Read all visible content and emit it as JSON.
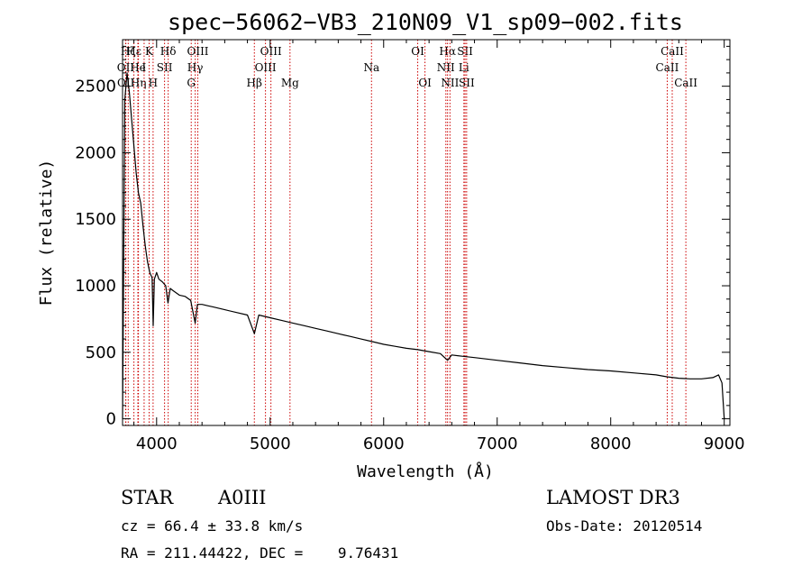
{
  "chart_data": {
    "type": "line",
    "title": "spec−56062−VB3_210N09_V1_sp09−002.fits",
    "xlabel": "Wavelength (Å)",
    "ylabel": "Flux (relative)",
    "xlim": [
      3700,
      9050
    ],
    "ylim": [
      -50,
      2850
    ],
    "xticks": [
      4000,
      5000,
      6000,
      7000,
      8000,
      9000
    ],
    "yticks": [
      0,
      500,
      1000,
      1500,
      2000,
      2500
    ],
    "series": [
      {
        "name": "flux",
        "x": [
          3700,
          3720,
          3740,
          3760,
          3780,
          3800,
          3820,
          3840,
          3860,
          3880,
          3900,
          3920,
          3940,
          3960,
          3970,
          3980,
          4000,
          4020,
          4050,
          4080,
          4100,
          4120,
          4150,
          4200,
          4250,
          4300,
          4340,
          4360,
          4400,
          4450,
          4500,
          4600,
          4700,
          4800,
          4861,
          4900,
          5000,
          5100,
          5200,
          5300,
          5400,
          5500,
          5600,
          5700,
          5800,
          5900,
          6000,
          6100,
          6200,
          6300,
          6400,
          6500,
          6563,
          6600,
          6700,
          6800,
          6900,
          7000,
          7200,
          7400,
          7600,
          7800,
          8000,
          8200,
          8400,
          8500,
          8600,
          8700,
          8800,
          8900,
          8950,
          8980,
          9000
        ],
        "y": [
          0,
          2400,
          2600,
          2450,
          2250,
          2050,
          1850,
          1700,
          1620,
          1450,
          1300,
          1180,
          1100,
          1060,
          700,
          1050,
          1100,
          1050,
          1030,
          1000,
          870,
          980,
          960,
          930,
          920,
          890,
          720,
          860,
          860,
          850,
          840,
          820,
          800,
          780,
          640,
          780,
          760,
          740,
          720,
          700,
          680,
          660,
          640,
          620,
          600,
          580,
          560,
          545,
          530,
          520,
          505,
          490,
          440,
          480,
          470,
          460,
          450,
          440,
          420,
          400,
          385,
          370,
          360,
          345,
          330,
          315,
          305,
          300,
          300,
          310,
          330,
          270,
          0
        ]
      }
    ],
    "lines": [
      {
        "name": "Hζ",
        "x": 3750,
        "row": 0
      },
      {
        "name": "OII",
        "x": 3727,
        "row": 1
      },
      {
        "name": "OII",
        "x": 3729,
        "row": 2
      },
      {
        "name": "Hε",
        "x": 3800,
        "row": 0
      },
      {
        "name": "He",
        "x": 3835,
        "row": 1
      },
      {
        "name": "Hη",
        "x": 3840,
        "row": 2
      },
      {
        "name": "K",
        "x": 3934,
        "row": 0
      },
      {
        "name": "I",
        "x": 3890,
        "row": 1
      },
      {
        "name": "H",
        "x": 3969,
        "row": 2
      },
      {
        "name": "Hδ",
        "x": 4102,
        "row": 0
      },
      {
        "name": "SII",
        "x": 4070,
        "row": 1
      },
      {
        "name": "OIII",
        "x": 4363,
        "row": 0
      },
      {
        "name": "Hγ",
        "x": 4340,
        "row": 1
      },
      {
        "name": "G",
        "x": 4305,
        "row": 2
      },
      {
        "name": "Hβ",
        "x": 4861,
        "row": 2
      },
      {
        "name": "OIII",
        "x": 5007,
        "row": 0
      },
      {
        "name": "OIII",
        "x": 4959,
        "row": 1
      },
      {
        "name": "Mg",
        "x": 5175,
        "row": 2
      },
      {
        "name": "Na",
        "x": 5893,
        "row": 1
      },
      {
        "name": "OI",
        "x": 6300,
        "row": 0
      },
      {
        "name": "OI",
        "x": 6364,
        "row": 2
      },
      {
        "name": "Hα",
        "x": 6563,
        "row": 0
      },
      {
        "name": "NII",
        "x": 6548,
        "row": 1
      },
      {
        "name": "NII",
        "x": 6584,
        "row": 2
      },
      {
        "name": "SII",
        "x": 6717,
        "row": 0
      },
      {
        "name": "Li",
        "x": 6707,
        "row": 1
      },
      {
        "name": "SII",
        "x": 6731,
        "row": 2
      },
      {
        "name": "CaII",
        "x": 8542,
        "row": 0
      },
      {
        "name": "CaII",
        "x": 8498,
        "row": 1
      },
      {
        "name": "CaII",
        "x": 8662,
        "row": 2
      }
    ]
  },
  "info": {
    "object_type": "STAR",
    "spectral_class": "A0III",
    "cz": "cz = 66.4 ± 33.8 km/s",
    "coords": "RA = 211.44422, DEC =    9.76431",
    "survey": "LAMOST DR3",
    "obs_date": "Obs-Date: 20120514"
  }
}
